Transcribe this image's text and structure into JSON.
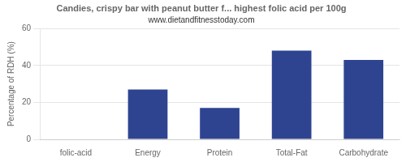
{
  "chart_data": {
    "type": "bar",
    "title": "Candies, crispy bar with peanut butter f... highest folic acid per 100g",
    "subtitle": "www.dietandfitnesstoday.com",
    "ylabel": "Percentage of RDH (%)",
    "categories": [
      "folic-acid",
      "Energy",
      "Protein",
      "Total-Fat",
      "Carbohydrate"
    ],
    "values": [
      0,
      27,
      17,
      48,
      43
    ],
    "color": "#2e4491",
    "ylim": [
      0,
      60
    ],
    "yticks": [
      0,
      20,
      40,
      60
    ],
    "grid": true
  }
}
